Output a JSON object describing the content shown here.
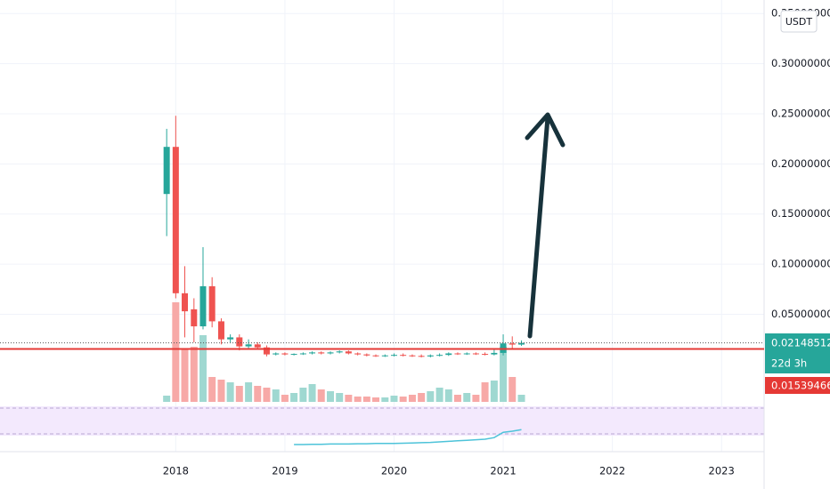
{
  "chart_data": {
    "type": "candlestick",
    "currency": "USDT",
    "x": [
      2017.917,
      2018.0,
      2018.083,
      2018.167,
      2018.25,
      2018.333,
      2018.417,
      2018.5,
      2018.583,
      2018.667,
      2018.75,
      2018.833,
      2018.917,
      2019.0,
      2019.083,
      2019.167,
      2019.25,
      2019.333,
      2019.417,
      2019.5,
      2019.583,
      2019.667,
      2019.75,
      2019.833,
      2019.917,
      2020.0,
      2020.083,
      2020.167,
      2020.25,
      2020.333,
      2020.417,
      2020.5,
      2020.583,
      2020.667,
      2020.75,
      2020.833,
      2020.917,
      2021.0,
      2021.083,
      2021.167
    ],
    "open": [
      0.17,
      0.217,
      0.071,
      0.055,
      0.038,
      0.078,
      0.043,
      0.025,
      0.027,
      0.018,
      0.02,
      0.017,
      0.01,
      0.011,
      0.01,
      0.0105,
      0.011,
      0.012,
      0.011,
      0.012,
      0.013,
      0.011,
      0.01,
      0.009,
      0.0085,
      0.009,
      0.0095,
      0.009,
      0.0085,
      0.008,
      0.009,
      0.0095,
      0.011,
      0.0105,
      0.011,
      0.0105,
      0.01,
      0.0115,
      0.021,
      0.0198
    ],
    "high": [
      0.235,
      0.248,
      0.098,
      0.066,
      0.117,
      0.087,
      0.046,
      0.03,
      0.03,
      0.025,
      0.022,
      0.019,
      0.012,
      0.012,
      0.011,
      0.012,
      0.013,
      0.013,
      0.013,
      0.014,
      0.014,
      0.012,
      0.011,
      0.01,
      0.01,
      0.011,
      0.011,
      0.01,
      0.01,
      0.01,
      0.011,
      0.012,
      0.012,
      0.012,
      0.012,
      0.012,
      0.015,
      0.03,
      0.028,
      0.024
    ],
    "low": [
      0.128,
      0.066,
      0.027,
      0.022,
      0.035,
      0.037,
      0.02,
      0.022,
      0.014,
      0.015,
      0.015,
      0.008,
      0.009,
      0.009,
      0.009,
      0.0095,
      0.01,
      0.01,
      0.01,
      0.011,
      0.01,
      0.009,
      0.008,
      0.0075,
      0.0075,
      0.008,
      0.008,
      0.0075,
      0.007,
      0.007,
      0.008,
      0.0085,
      0.0095,
      0.0095,
      0.0095,
      0.009,
      0.009,
      0.009,
      0.015,
      0.0185
    ],
    "close": [
      0.217,
      0.071,
      0.053,
      0.038,
      0.078,
      0.043,
      0.025,
      0.027,
      0.018,
      0.02,
      0.017,
      0.01,
      0.011,
      0.01,
      0.0105,
      0.011,
      0.012,
      0.011,
      0.012,
      0.013,
      0.011,
      0.01,
      0.009,
      0.0085,
      0.009,
      0.0095,
      0.009,
      0.0085,
      0.008,
      0.009,
      0.0095,
      0.011,
      0.0105,
      0.011,
      0.0105,
      0.01,
      0.0115,
      0.021,
      0.0198,
      0.02148512
    ],
    "volume": [
      7,
      112,
      60,
      62,
      75,
      28,
      25,
      22,
      18,
      22,
      18,
      16,
      14,
      8,
      10,
      16,
      20,
      14,
      12,
      10,
      8,
      6,
      6,
      5,
      5,
      7,
      6,
      8,
      10,
      12,
      16,
      14,
      8,
      10,
      8,
      22,
      24,
      62,
      28,
      8
    ],
    "volume_lim": [
      0,
      120
    ],
    "rsi": [
      null,
      null,
      null,
      null,
      null,
      null,
      null,
      null,
      null,
      null,
      null,
      null,
      null,
      null,
      25,
      25,
      25.5,
      25.5,
      26,
      26,
      26,
      26.5,
      26.5,
      27,
      27,
      27,
      27.5,
      28,
      28.5,
      29,
      30,
      31,
      32,
      33,
      34,
      35,
      38,
      48,
      50,
      53
    ],
    "rsi_lim": [
      0,
      100
    ],
    "up_color": "#26a69a",
    "down_color": "#ef5350",
    "volume_up_color": "#9fd8d1",
    "volume_down_color": "#f7a9a7",
    "rsi_color": "#4dc3d9",
    "ylim": [
      -0.04,
      0.3635
    ],
    "yticks": [
      {
        "value": 0.05,
        "label": "0.05000000"
      },
      {
        "value": 0.1,
        "label": "0.10000000"
      },
      {
        "value": 0.15,
        "label": "0.15000000"
      },
      {
        "value": 0.2,
        "label": "0.20000000"
      },
      {
        "value": 0.25,
        "label": "0.25000000"
      },
      {
        "value": 0.3,
        "label": "0.30000000"
      },
      {
        "value": 0.35,
        "label": "0.35000000"
      }
    ],
    "xlim": [
      2016.39,
      2023.39
    ],
    "xticks": [
      2018,
      2019,
      2020,
      2021,
      2022,
      2023
    ],
    "grid": true,
    "last_price": 0.02148512,
    "countdown": "22d 3h",
    "support_level": 0.01539466,
    "support_color": "#e53935"
  }
}
